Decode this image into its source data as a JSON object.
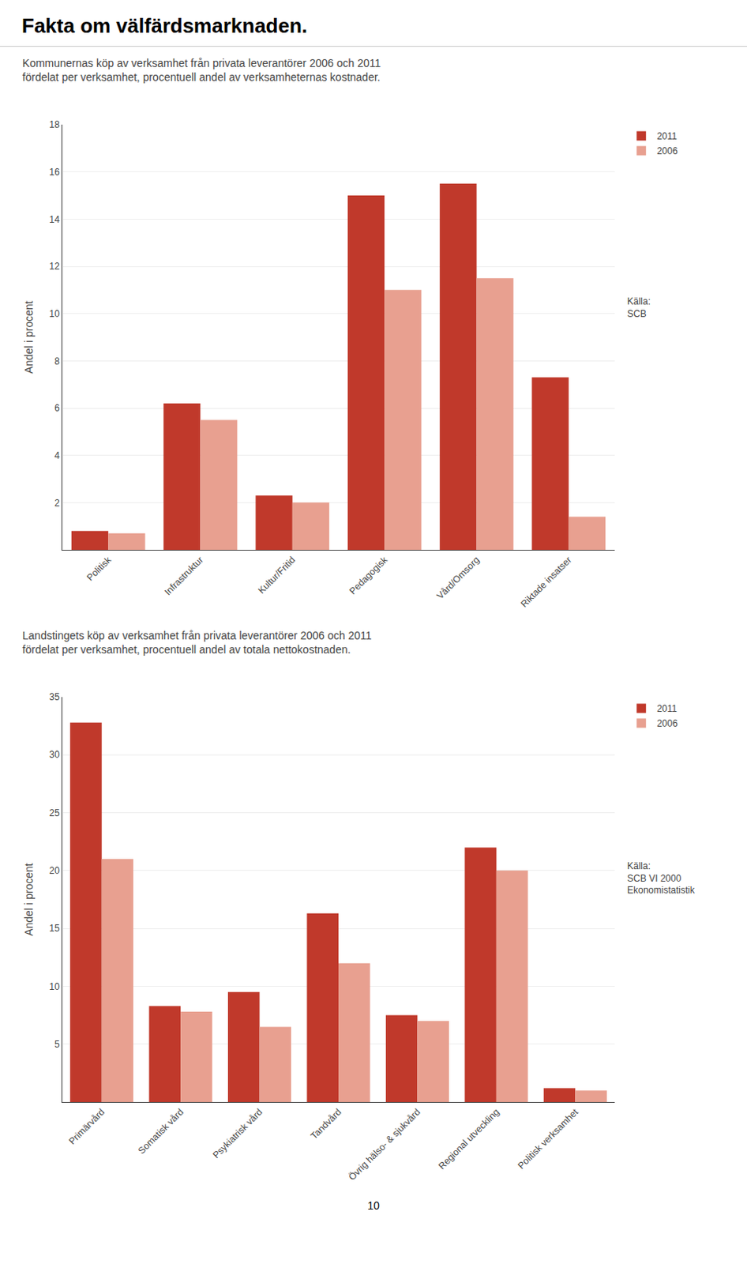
{
  "title": "Fakta om välfärdsmarknaden.",
  "annotations": [
    "10"
  ],
  "chart_data": [
    {
      "type": "bar",
      "title": "Kommunernas köp av verksamhet från privata leverantörer 2006 och 2011",
      "subtitle": "fördelat per verksamhet, procentuell andel av verksamheternas kostnader.",
      "ylabel": "Andel i procent",
      "categories": [
        "Politisk",
        "Infrastruktur",
        "Kultur/Fritid",
        "Pedagogisk",
        "Vård/Omsorg",
        "Riktade insatser"
      ],
      "series": [
        {
          "name": "2011",
          "color": "#c0392b",
          "values": [
            0.8,
            6.2,
            2.3,
            15.0,
            15.5,
            7.3
          ]
        },
        {
          "name": "2006",
          "color": "#e8a090",
          "values": [
            0.7,
            5.5,
            2.0,
            11.0,
            11.5,
            1.4
          ]
        }
      ],
      "ylim": [
        0,
        18
      ],
      "yticks": [
        2,
        4,
        6,
        8,
        10,
        12,
        14,
        16,
        18
      ],
      "grid": true,
      "legend": "upper right",
      "annotations": [
        "Källa:\nSCB"
      ]
    },
    {
      "type": "bar",
      "title": "Landstingets köp av verksamhet från privata leverantörer 2006 och 2011",
      "subtitle": "fördelat per verksamhet, procentuell andel av totala nettokostnaden.",
      "ylabel": "Andel i procent",
      "categories": [
        "Primärvård",
        "Somatisk vård",
        "Psykiatrisk vård",
        "Tandvård",
        "Övrig hälso- & sjukvård",
        "Regional utveckling",
        "Politisk verksamhet"
      ],
      "series": [
        {
          "name": "2011",
          "color": "#c0392b",
          "values": [
            32.8,
            8.3,
            9.5,
            16.3,
            7.5,
            22.0,
            1.2
          ]
        },
        {
          "name": "2006",
          "color": "#e8a090",
          "values": [
            21.0,
            7.8,
            6.5,
            12.0,
            7.0,
            20.0,
            1.0
          ]
        }
      ],
      "ylim": [
        0,
        35
      ],
      "yticks": [
        5,
        10,
        15,
        20,
        25,
        30,
        35
      ],
      "grid": true,
      "legend": "upper right",
      "annotations": [
        "Källa:\nSCB VI 2000\nEkonomistatistik"
      ]
    }
  ]
}
